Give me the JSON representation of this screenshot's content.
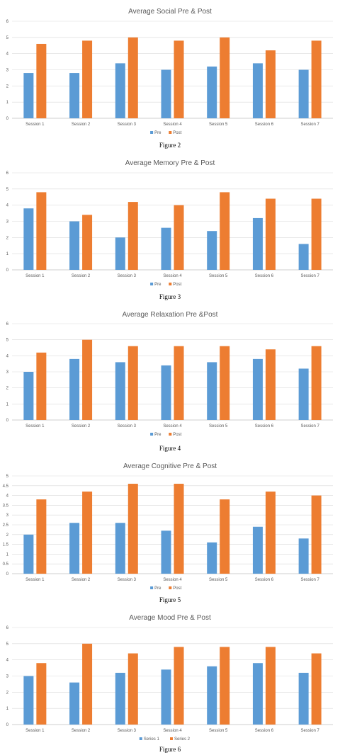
{
  "colors": {
    "pre": "#5b9bd5",
    "post": "#ed7d31"
  },
  "chart_data": [
    {
      "type": "bar",
      "title": "Average Social Pre & Post",
      "caption": "Figure 2",
      "categories": [
        "Session 1",
        "Session 2",
        "Session 3",
        "Session 4",
        "Session 5",
        "Session 6",
        "Session 7"
      ],
      "ylim": [
        0,
        6
      ],
      "yticks": [
        "0",
        "1",
        "2",
        "3",
        "4",
        "5",
        "6"
      ],
      "ystep": 1,
      "grid": true,
      "legend": "bottom",
      "series": [
        {
          "name": "Pre",
          "values": [
            2.8,
            2.8,
            3.4,
            3.0,
            3.2,
            3.4,
            3.0
          ]
        },
        {
          "name": "Post",
          "values": [
            4.6,
            4.8,
            5.0,
            4.8,
            5.0,
            4.2,
            4.8
          ]
        }
      ]
    },
    {
      "type": "bar",
      "title": "Average Memory Pre & Post",
      "caption": "Figure 3",
      "categories": [
        "Session 1",
        "Session 2",
        "Session 3",
        "Session 4",
        "Session 5",
        "Session 6",
        "Session 7"
      ],
      "ylim": [
        0,
        6
      ],
      "yticks": [
        "0",
        "1",
        "2",
        "3",
        "4",
        "5",
        "6"
      ],
      "ystep": 1,
      "grid": true,
      "legend": "bottom",
      "series": [
        {
          "name": "Pre",
          "values": [
            3.8,
            3.0,
            2.0,
            2.6,
            2.4,
            3.2,
            1.6
          ]
        },
        {
          "name": "Post",
          "values": [
            4.8,
            3.4,
            4.2,
            4.0,
            4.8,
            4.4,
            4.4
          ]
        }
      ]
    },
    {
      "type": "bar",
      "title": "Average Relaxation Pre &Post",
      "caption": "Figure 4",
      "categories": [
        "Session 1",
        "Session 2",
        "Session 3",
        "Session 4",
        "Session 5",
        "Session 6",
        "Session 7"
      ],
      "ylim": [
        0,
        6
      ],
      "yticks": [
        "0",
        "1",
        "2",
        "3",
        "4",
        "5",
        "6"
      ],
      "ystep": 1,
      "grid": true,
      "legend": "bottom",
      "series": [
        {
          "name": "Pre",
          "values": [
            3.0,
            3.8,
            3.6,
            3.4,
            3.6,
            3.8,
            3.2
          ]
        },
        {
          "name": "Post",
          "values": [
            4.2,
            5.0,
            4.6,
            4.6,
            4.6,
            4.4,
            4.6
          ]
        }
      ]
    },
    {
      "type": "bar",
      "title": "Average Cognitive Pre & Post",
      "caption": "Figure 5",
      "categories": [
        "Session 1",
        "Session 2",
        "Session 3",
        "Session 4",
        "Session 5",
        "Session 6",
        "Session 7"
      ],
      "ylim": [
        0,
        5
      ],
      "yticks": [
        "0",
        "0.5",
        "1",
        "1.5",
        "2",
        "2.5",
        "3",
        "3.5",
        "4",
        "4.5",
        "5"
      ],
      "ystep": 0.5,
      "grid": true,
      "legend": "bottom",
      "series": [
        {
          "name": "Pre",
          "values": [
            2.0,
            2.6,
            2.6,
            2.2,
            1.6,
            2.4,
            1.8
          ]
        },
        {
          "name": "Post",
          "values": [
            3.8,
            4.2,
            4.6,
            4.6,
            3.8,
            4.2,
            4.0
          ]
        }
      ]
    },
    {
      "type": "bar",
      "title": "Average Mood Pre & Post",
      "caption": "Figure 6",
      "categories": [
        "Session 1",
        "Session 2",
        "Session 3",
        "Session 4",
        "Session 5",
        "Session 6",
        "Session 7"
      ],
      "ylim": [
        0,
        6
      ],
      "yticks": [
        "0",
        "1",
        "2",
        "3",
        "4",
        "5",
        "6"
      ],
      "ystep": 1,
      "grid": true,
      "legend": "bottom",
      "series": [
        {
          "name": "Series 1",
          "values": [
            3.0,
            2.6,
            3.2,
            3.4,
            3.6,
            3.8,
            3.2
          ]
        },
        {
          "name": "Series 2",
          "values": [
            3.8,
            5.0,
            4.4,
            4.8,
            4.8,
            4.8,
            4.4
          ]
        }
      ]
    }
  ]
}
